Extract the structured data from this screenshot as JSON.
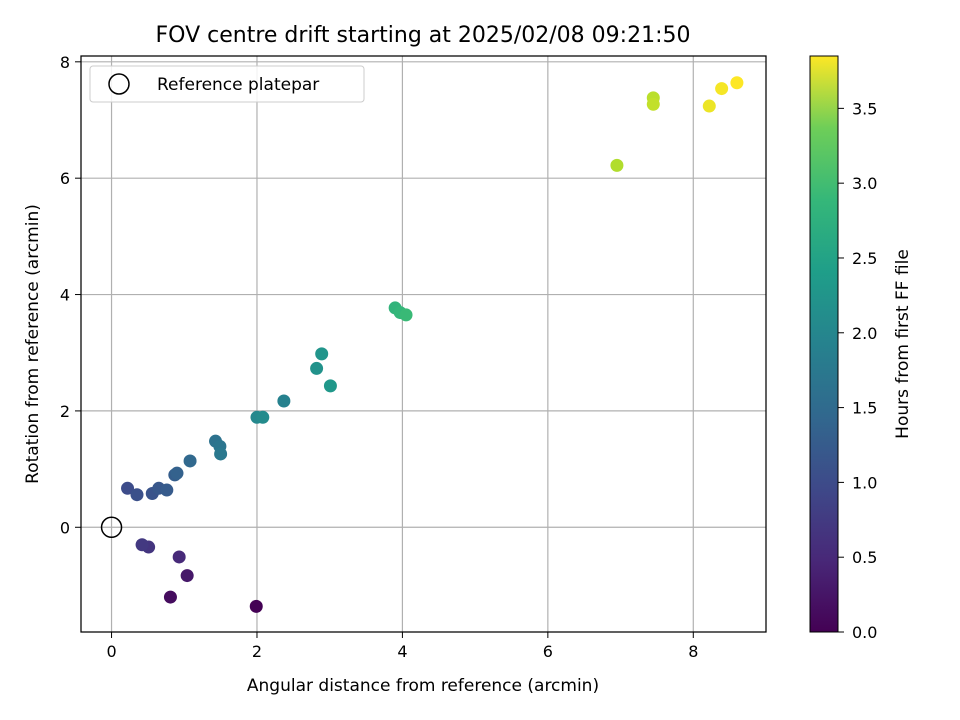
{
  "chart_data": {
    "type": "scatter",
    "title": "FOV centre drift starting at 2025/02/08 09:21:50",
    "xlabel": "Angular distance from reference (arcmin)",
    "ylabel": "Rotation from reference (arcmin)",
    "xlim": [
      -0.42,
      9.0
    ],
    "ylim": [
      -1.8,
      8.1
    ],
    "xticks": [
      0,
      2,
      4,
      6,
      8
    ],
    "yticks": [
      0,
      2,
      4,
      6,
      8
    ],
    "grid": true,
    "legend": {
      "placement": "top-left",
      "entries": [
        "Reference platepar"
      ]
    },
    "reference": {
      "label": "Reference platepar",
      "x": 0,
      "y": 0
    },
    "colorbar": {
      "label": "Hours from first FF file",
      "colormap": "viridis",
      "range": [
        0.0,
        3.85
      ],
      "ticks": [
        "0.0",
        "0.5",
        "1.0",
        "1.5",
        "2.0",
        "2.5",
        "3.0",
        "3.5"
      ]
    },
    "points": [
      {
        "x": 1.99,
        "y": -1.36,
        "hours": 0.0
      },
      {
        "x": 0.81,
        "y": -1.2,
        "hours": 0.12
      },
      {
        "x": 1.04,
        "y": -0.83,
        "hours": 0.25
      },
      {
        "x": 0.93,
        "y": -0.51,
        "hours": 0.45
      },
      {
        "x": 0.51,
        "y": -0.34,
        "hours": 0.6
      },
      {
        "x": 0.42,
        "y": -0.3,
        "hours": 0.65
      },
      {
        "x": 0.22,
        "y": 0.67,
        "hours": 0.9
      },
      {
        "x": 0.35,
        "y": 0.56,
        "hours": 0.95
      },
      {
        "x": 0.56,
        "y": 0.58,
        "hours": 1.0
      },
      {
        "x": 0.65,
        "y": 0.67,
        "hours": 1.05
      },
      {
        "x": 0.76,
        "y": 0.64,
        "hours": 1.1
      },
      {
        "x": 0.87,
        "y": 0.9,
        "hours": 1.15
      },
      {
        "x": 0.9,
        "y": 0.93,
        "hours": 1.2
      },
      {
        "x": 1.08,
        "y": 1.14,
        "hours": 1.3
      },
      {
        "x": 1.43,
        "y": 1.48,
        "hours": 1.45
      },
      {
        "x": 1.49,
        "y": 1.39,
        "hours": 1.5
      },
      {
        "x": 1.5,
        "y": 1.26,
        "hours": 1.55
      },
      {
        "x": 2.0,
        "y": 1.89,
        "hours": 1.8
      },
      {
        "x": 2.08,
        "y": 1.89,
        "hours": 1.85
      },
      {
        "x": 2.37,
        "y": 2.17,
        "hours": 1.7
      },
      {
        "x": 2.82,
        "y": 2.73,
        "hours": 1.95
      },
      {
        "x": 2.89,
        "y": 2.98,
        "hours": 2.0
      },
      {
        "x": 3.01,
        "y": 2.43,
        "hours": 2.05
      },
      {
        "x": 3.9,
        "y": 3.77,
        "hours": 2.5
      },
      {
        "x": 3.97,
        "y": 3.69,
        "hours": 2.55
      },
      {
        "x": 4.05,
        "y": 3.65,
        "hours": 2.6
      },
      {
        "x": 6.95,
        "y": 6.22,
        "hours": 3.4
      },
      {
        "x": 7.45,
        "y": 7.38,
        "hours": 3.45
      },
      {
        "x": 7.45,
        "y": 7.27,
        "hours": 3.5
      },
      {
        "x": 8.22,
        "y": 7.24,
        "hours": 3.75
      },
      {
        "x": 8.39,
        "y": 7.54,
        "hours": 3.8
      },
      {
        "x": 8.6,
        "y": 7.64,
        "hours": 3.85
      }
    ]
  }
}
